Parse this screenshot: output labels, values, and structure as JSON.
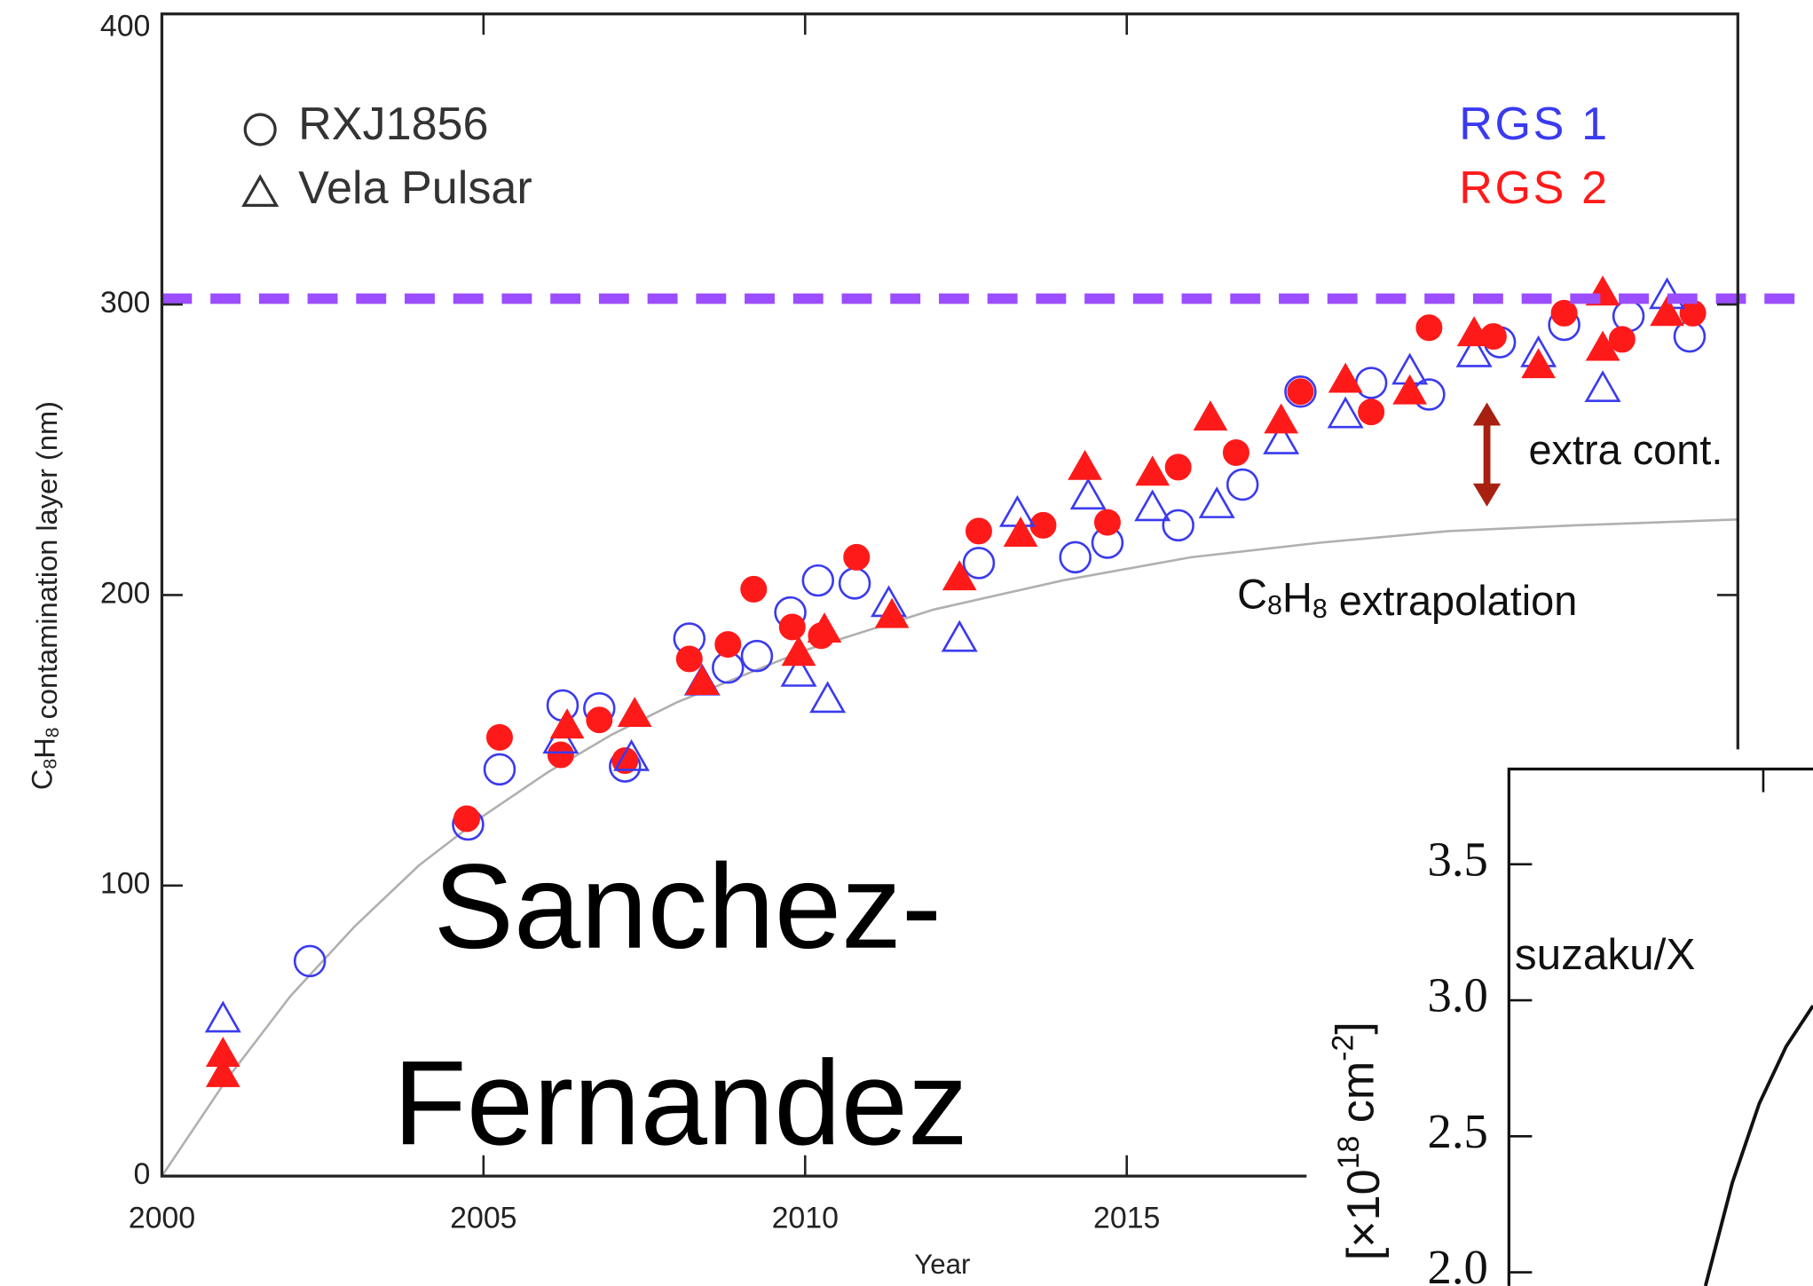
{
  "chart_data": {
    "type": "scatter",
    "xlim": [
      2000,
      2024.5
    ],
    "ylim": [
      0,
      400
    ],
    "xticks": [
      2000,
      2005,
      2010,
      2015
    ],
    "yticks": [
      0,
      100,
      200,
      300,
      400
    ],
    "x_label": "Year",
    "y_label": [
      "C",
      "8",
      "H",
      "8",
      " contamination layer (nm)"
    ],
    "legend": {
      "sources": [
        {
          "name": "RXJ1856",
          "marker": "circle"
        },
        {
          "name": "Vela Pulsar",
          "marker": "triangle"
        }
      ],
      "instruments": [
        {
          "name": "RGS 1",
          "color": "#3a3af0"
        },
        {
          "name": "RGS 2",
          "color": "#ff1a1a"
        }
      ]
    },
    "series": [
      {
        "marker": "circle",
        "filled": false,
        "color": "#3a3af0",
        "x": [
          2002.3,
          2004.76,
          2005.25,
          2006.23,
          2006.8,
          2007.2,
          2008.2,
          2008.8,
          2009.25,
          2009.77,
          2010.2,
          2010.77,
          2012.7,
          2014.2,
          2014.7,
          2015.8,
          2016.8,
          2017.7,
          2018.8,
          2019.7,
          2020.8,
          2021.8,
          2022.8,
          2023.75
        ],
        "values": [
          74,
          121,
          140,
          162,
          161,
          141,
          185,
          175,
          179,
          194,
          205,
          204,
          211,
          213,
          218,
          224,
          238,
          270,
          273,
          269,
          287,
          293,
          296,
          289
        ]
      },
      {
        "marker": "circle",
        "filled": true,
        "color": "#ff1a1a",
        "x": [
          2004.74,
          2005.25,
          2006.2,
          2006.8,
          2007.2,
          2008.2,
          2008.8,
          2009.2,
          2009.8,
          2010.25,
          2010.8,
          2012.7,
          2013.7,
          2014.7,
          2015.8,
          2016.7,
          2017.7,
          2018.8,
          2019.7,
          2020.7,
          2021.8,
          2022.7,
          2023.8
        ],
        "values": [
          123,
          151,
          145,
          157,
          143,
          178,
          183,
          202,
          189,
          186,
          213,
          222,
          224,
          225,
          244,
          249,
          270,
          263,
          292,
          289,
          297,
          288,
          297
        ]
      },
      {
        "marker": "triangle",
        "filled": false,
        "color": "#3a3af0",
        "x": [
          2000.95,
          2006.2,
          2007.3,
          2008.4,
          2009.9,
          2010.35,
          2011.3,
          2012.4,
          2013.3,
          2014.4,
          2015.4,
          2016.4,
          2017.4,
          2018.4,
          2019.4,
          2020.4,
          2021.4,
          2022.4,
          2023.4
        ],
        "values": [
          54,
          150,
          144,
          170,
          173,
          164,
          197,
          185,
          228,
          234,
          230,
          231,
          253,
          262,
          277,
          283,
          283,
          271,
          303
        ]
      },
      {
        "marker": "triangle",
        "filled": true,
        "color": "#ff1a1a",
        "x": [
          2000.95,
          2000.95,
          2006.3,
          2007.35,
          2008.4,
          2009.9,
          2010.3,
          2011.35,
          2012.4,
          2013.35,
          2014.35,
          2015.4,
          2016.3,
          2017.4,
          2018.4,
          2019.4,
          2020.4,
          2021.4,
          2022.4,
          2022.4,
          2023.4
        ],
        "values": [
          42,
          35,
          155,
          159,
          170,
          180,
          188,
          193,
          206,
          221,
          244,
          242,
          261,
          260,
          274,
          270,
          290,
          279,
          304,
          285,
          297
        ]
      }
    ],
    "fit": {
      "color": "#b0b0b0",
      "x": [
        2000,
        2001,
        2002,
        2003,
        2004,
        2005,
        2006,
        2007,
        2008,
        2010,
        2012,
        2014,
        2016,
        2018,
        2020,
        2022,
        2024.5
      ],
      "values": [
        0,
        33,
        62,
        86,
        107,
        124,
        139,
        152,
        163,
        181,
        195,
        205,
        213,
        218,
        222,
        224,
        226
      ],
      "label": [
        "C",
        "8",
        "H",
        "8",
        " extrapolation"
      ]
    },
    "reference_line": {
      "value": 302,
      "color": "#9b4dff"
    },
    "annotation": "extra cont."
  },
  "overlay": {
    "lines": [
      "Sanchez-",
      "Fernandez"
    ]
  },
  "inset": {
    "ylim": [
      1.95,
      3.85
    ],
    "yticks": [
      3.5,
      {
        "value": 3,
        "label": "3.0"
      },
      2.5,
      {
        "value": 2,
        "label": "2.0"
      }
    ],
    "y_label": [
      "[×10",
      "18",
      " cm",
      "-2",
      "]"
    ],
    "text": "suzaku/X",
    "curve": [
      1.95,
      2.33,
      2.62,
      2.83,
      2.98
    ]
  }
}
